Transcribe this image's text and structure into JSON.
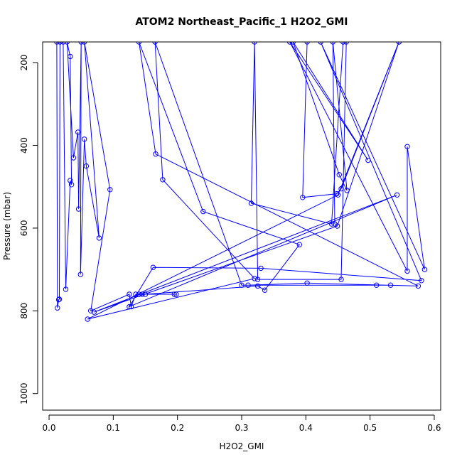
{
  "chart_data": {
    "type": "line",
    "title": "ATOM2 Northeast_Pacific_1 H2O2_GMI",
    "xlabel": "H2O2_GMI",
    "ylabel": "Pressure (mbar)",
    "xlim": [
      -0.01,
      0.61
    ],
    "ylim": [
      1040,
      150
    ],
    "y_inverted": true,
    "x_ticks": [
      0.0,
      0.1,
      0.2,
      0.3,
      0.4,
      0.5,
      0.6
    ],
    "x_tick_labels": [
      "0.0",
      "0.1",
      "0.2",
      "0.3",
      "0.4",
      "0.5",
      "0.6"
    ],
    "y_ticks": [
      200,
      400,
      600,
      800,
      1000
    ],
    "y_tick_labels": [
      "200",
      "400",
      "600",
      "800",
      "1000"
    ],
    "grid": false,
    "legend": "none",
    "line_color": "#0000ff",
    "marker": "open-circle",
    "series": [
      {
        "points": [
          [
            0.012,
            150
          ],
          [
            0.013,
            793
          ],
          [
            0.015,
            773
          ],
          [
            0.016,
            772
          ],
          [
            0.017,
            150
          ],
          [
            0.022,
            150
          ],
          [
            0.026,
            748
          ],
          [
            0.033,
            485
          ],
          [
            0.035,
            495
          ],
          [
            0.033,
            185
          ],
          [
            0.028,
            150
          ],
          [
            0.038,
            430
          ],
          [
            0.045,
            368
          ],
          [
            0.046,
            554
          ],
          [
            0.05,
            150
          ],
          [
            0.049,
            712
          ],
          [
            0.055,
            385
          ],
          [
            0.058,
            450
          ],
          [
            0.078,
            624
          ],
          [
            0.055,
            150
          ],
          [
            0.095,
            507
          ],
          [
            0.065,
            800
          ],
          [
            0.125,
            760
          ],
          [
            0.128,
            790
          ],
          [
            0.135,
            760
          ],
          [
            0.14,
            760
          ],
          [
            0.145,
            760
          ],
          [
            0.195,
            760
          ],
          [
            0.198,
            760
          ],
          [
            0.15,
            760
          ],
          [
            0.325,
            740
          ],
          [
            0.336,
            750
          ],
          [
            0.39,
            640
          ],
          [
            0.24,
            560
          ],
          [
            0.14,
            150
          ],
          [
            0.166,
            421
          ],
          [
            0.575,
            740
          ],
          [
            0.402,
            733
          ],
          [
            0.31,
            738
          ],
          [
            0.51,
            738
          ],
          [
            0.532,
            738
          ],
          [
            0.3,
            738
          ],
          [
            0.165,
            150
          ],
          [
            0.177,
            483
          ],
          [
            0.32,
            722
          ],
          [
            0.06,
            820
          ],
          [
            0.45,
            520
          ],
          [
            0.545,
            150
          ],
          [
            0.455,
            505
          ],
          [
            0.448,
            517
          ],
          [
            0.395,
            526
          ],
          [
            0.402,
            150
          ],
          [
            0.463,
            150
          ],
          [
            0.455,
            724
          ],
          [
            0.325,
            724
          ],
          [
            0.32,
            150
          ],
          [
            0.315,
            540
          ],
          [
            0.44,
            590
          ],
          [
            0.458,
            150
          ],
          [
            0.545,
            150
          ],
          [
            0.449,
            595
          ],
          [
            0.07,
            803
          ],
          [
            0.542,
            520
          ],
          [
            0.125,
            790
          ],
          [
            0.162,
            695
          ],
          [
            0.33,
            697
          ],
          [
            0.58,
            727
          ],
          [
            0.423,
            150
          ],
          [
            0.585,
            700
          ],
          [
            0.558,
            403
          ],
          [
            0.558,
            704
          ],
          [
            0.375,
            150
          ],
          [
            0.497,
            436
          ],
          [
            0.38,
            150
          ],
          [
            0.452,
            471
          ],
          [
            0.464,
            509
          ],
          [
            0.442,
            150
          ],
          [
            0.445,
            590
          ]
        ]
      }
    ]
  }
}
